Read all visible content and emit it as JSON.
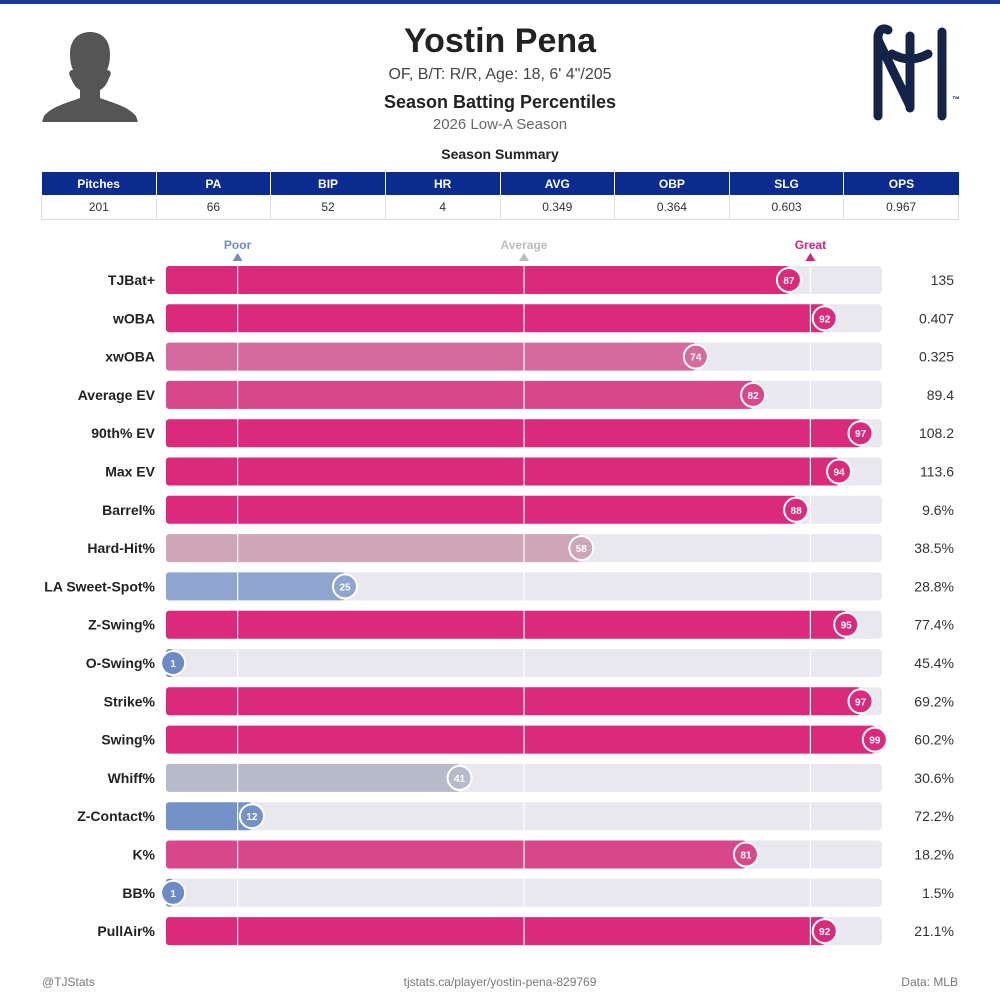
{
  "header": {
    "player_name": "Yostin Pena",
    "player_info": "OF, B/T: R/R, Age: 18, 6' 4\"/205",
    "report_title": "Season Batting Percentiles",
    "season": "2026 Low-A Season"
  },
  "summary": {
    "title": "Season Summary",
    "columns": [
      "Pitches",
      "PA",
      "BIP",
      "HR",
      "AVG",
      "OBP",
      "SLG",
      "OPS"
    ],
    "values": [
      "201",
      "66",
      "52",
      "4",
      "0.349",
      "0.364",
      "0.603",
      "0.967"
    ]
  },
  "chart_data": {
    "type": "bar",
    "orientation": "horizontal",
    "xlim": [
      0,
      100
    ],
    "markers": [
      {
        "label": "Poor",
        "value": 10,
        "color": "#6f8cc6"
      },
      {
        "label": "Average",
        "value": 50,
        "color": "#bcbcbc"
      },
      {
        "label": "Great",
        "value": 90,
        "color": "#d6237a"
      }
    ],
    "categories": [
      "TJBat+",
      "wOBA",
      "xwOBA",
      "Average EV",
      "90th% EV",
      "Max EV",
      "Barrel%",
      "Hard-Hit%",
      "LA Sweet-Spot%",
      "Z-Swing%",
      "O-Swing%",
      "Strike%",
      "Swing%",
      "Whiff%",
      "Z-Contact%",
      "K%",
      "BB%",
      "PullAir%"
    ],
    "percentiles": [
      87,
      92,
      74,
      82,
      97,
      94,
      88,
      58,
      25,
      95,
      1,
      97,
      99,
      41,
      12,
      81,
      1,
      92
    ],
    "stat_values": [
      "135",
      "0.407",
      "0.325",
      "89.4",
      "108.2",
      "113.6",
      "9.6%",
      "38.5%",
      "28.8%",
      "77.4%",
      "45.4%",
      "69.2%",
      "60.2%",
      "30.6%",
      "72.2%",
      "18.2%",
      "1.5%",
      "21.1%"
    ],
    "colors": [
      "#db2a7c",
      "#db2a7c",
      "#d56b9d",
      "#d8478a",
      "#db2a7c",
      "#db2a7c",
      "#db2a7c",
      "#cfa5b8",
      "#8fa5cf",
      "#db2a7c",
      "#6c8ac6",
      "#db2a7c",
      "#db2a7c",
      "#b5bbc9",
      "#7592c8",
      "#d8478a",
      "#6c8ac6",
      "#db2a7c"
    ],
    "track_color": "#e8e8ee",
    "grid": true
  },
  "footer": {
    "left": "@TJStats",
    "center": "tjstats.ca/player/yostin-pena-829769",
    "right": "Data: MLB"
  },
  "icons": {
    "player": "player-silhouette-icon",
    "team": "team-logo-icon"
  }
}
